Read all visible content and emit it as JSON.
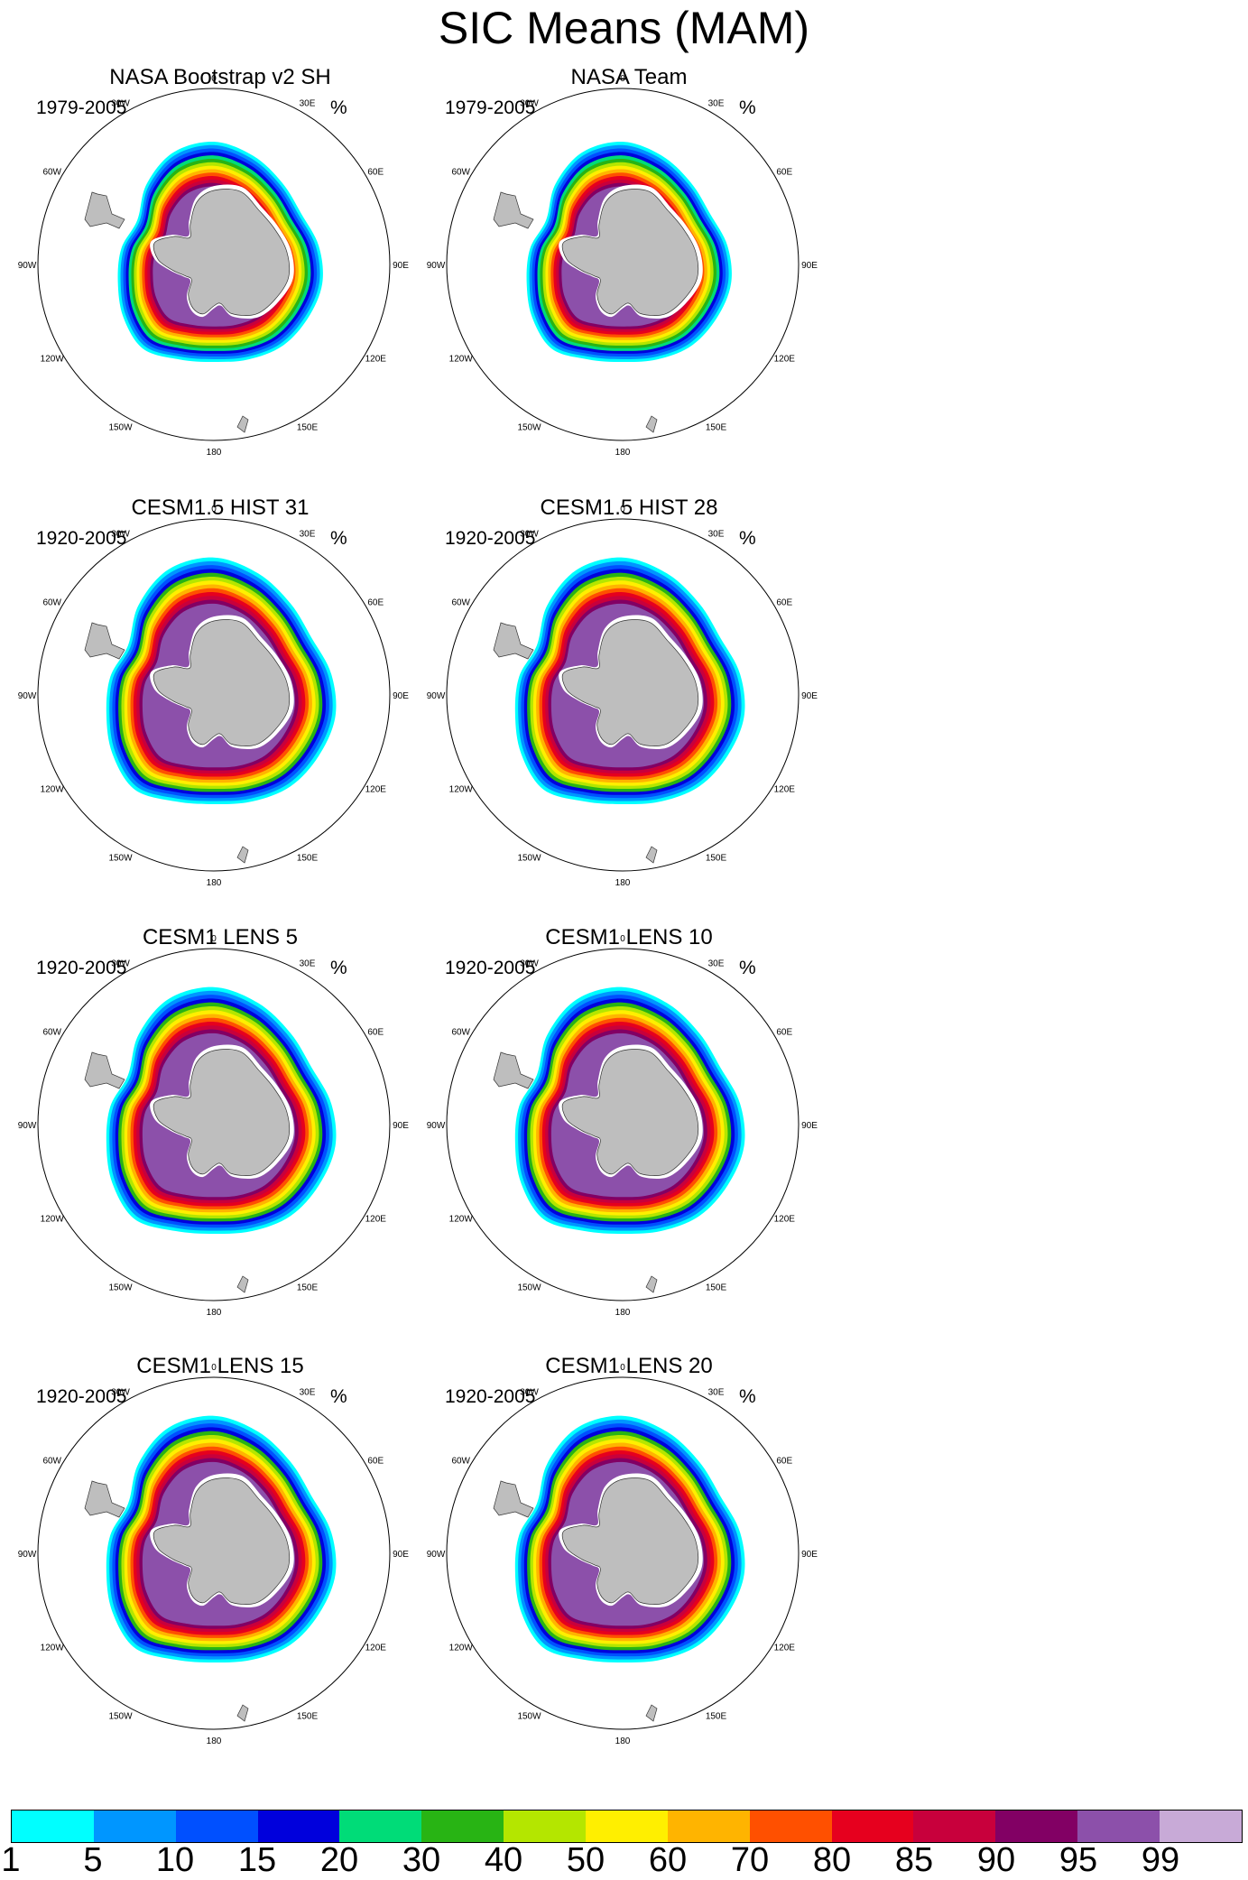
{
  "title": "SIC Means (MAM)",
  "unit": "%",
  "longitude_labels": [
    "0",
    "30E",
    "60E",
    "90E",
    "120E",
    "150E",
    "180",
    "150W",
    "120W",
    "90W",
    "60W",
    "30W"
  ],
  "panels": [
    {
      "title": "NASA Bootstrap v2 SH",
      "period": "1979-2005"
    },
    {
      "title": "NASA Team",
      "period": "1979-2005"
    },
    {
      "title": "CESM1.5 HIST 31",
      "period": "1920-2005"
    },
    {
      "title": "CESM1.5 HIST 28",
      "period": "1920-2005"
    },
    {
      "title": "CESM1 LENS 5",
      "period": "1920-2005"
    },
    {
      "title": "CESM1 LENS 10",
      "period": "1920-2005"
    },
    {
      "title": "CESM1 LENS 15",
      "period": "1920-2005"
    },
    {
      "title": "CESM1 LENS 20",
      "period": "1920-2005"
    }
  ],
  "colorbar": {
    "labels": [
      "1",
      "5",
      "10",
      "15",
      "20",
      "30",
      "40",
      "50",
      "60",
      "70",
      "80",
      "85",
      "90",
      "95",
      "99"
    ],
    "colors": [
      "#00ffff",
      "#0096ff",
      "#0050ff",
      "#0000dc",
      "#00dc78",
      "#28b414",
      "#b4e600",
      "#ffef00",
      "#ffb400",
      "#ff5000",
      "#e6001e",
      "#c8003c",
      "#820064",
      "#8c50aa",
      "#c8aad7"
    ]
  },
  "colors": {
    "land": "#bebebe",
    "background": "#ffffff"
  }
}
